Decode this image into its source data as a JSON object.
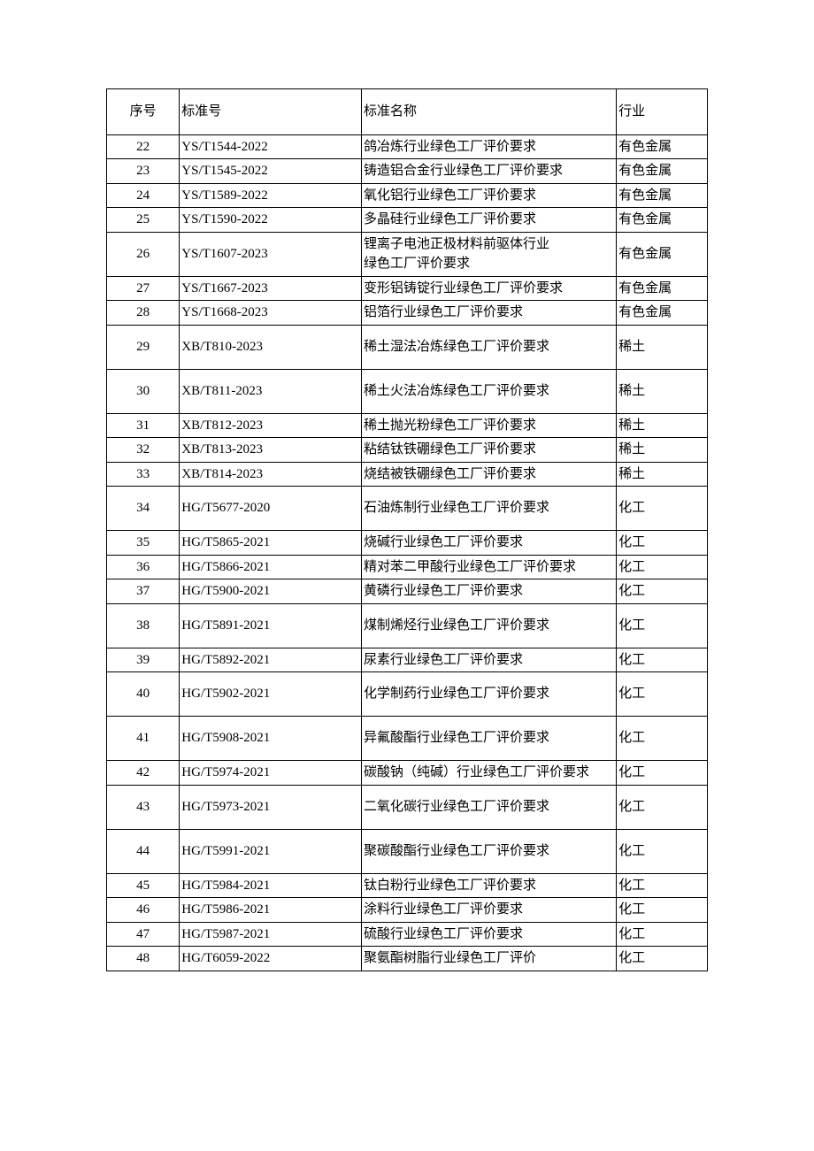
{
  "headers": {
    "seq": "序号",
    "std": "标准号",
    "name": "标准名称",
    "ind": "行业"
  },
  "rows": [
    {
      "seq": "22",
      "std": "YS/T1544-2022",
      "name": "鸽冶炼行业绿色工厂评价要求",
      "ind": "有色金属",
      "tall": false
    },
    {
      "seq": "23",
      "std": "YS/T1545-2022",
      "name": "铸造铝合金行业绿色工厂评价要求",
      "ind": "有色金属",
      "tall": false
    },
    {
      "seq": "24",
      "std": "YS/T1589-2022",
      "name": "氧化铝行业绿色工厂评价要求",
      "ind": "有色金属",
      "tall": false
    },
    {
      "seq": "25",
      "std": "YS/T1590-2022",
      "name": "多晶硅行业绿色工厂评价要求",
      "ind": "有色金属",
      "tall": false
    },
    {
      "seq": "26",
      "std": "YS/T1607-2023",
      "name": "锂离子电池正极材料前驱体行业\n绿色工厂评价要求",
      "ind": "有色金属",
      "tall": false
    },
    {
      "seq": "27",
      "std": "YS/T1667-2023",
      "name": "变形铝铸锭行业绿色工厂评价要求",
      "ind": "有色金属",
      "tall": false
    },
    {
      "seq": "28",
      "std": "YS/T1668-2023",
      "name": "铝箔行业绿色工厂评价要求",
      "ind": "有色金属",
      "tall": false
    },
    {
      "seq": "29",
      "std": "XB/T810-2023",
      "name": "稀土湿法冶炼绿色工厂评价要求",
      "ind": "稀土",
      "tall": true
    },
    {
      "seq": "30",
      "std": "XB/T811-2023",
      "name": "稀土火法冶炼绿色工厂评价要求",
      "ind": "稀土",
      "tall": true
    },
    {
      "seq": "31",
      "std": "XB/T812-2023",
      "name": "稀土抛光粉绿色工厂评价要求",
      "ind": "稀土",
      "tall": false
    },
    {
      "seq": "32",
      "std": "XB/T813-2023",
      "name": "粘结钛铁硼绿色工厂评价要求",
      "ind": "稀土",
      "tall": false
    },
    {
      "seq": "33",
      "std": "XB/T814-2023",
      "name": "烧结被铁硼绿色工厂评价要求",
      "ind": "稀土",
      "tall": false
    },
    {
      "seq": "34",
      "std": "HG/T5677-2020",
      "name": "石油炼制行业绿色工厂评价要求",
      "ind": "化工",
      "tall": true
    },
    {
      "seq": "35",
      "std": "HG/T5865-2021",
      "name": "烧碱行业绿色工厂评价要求",
      "ind": "化工",
      "tall": false
    },
    {
      "seq": "36",
      "std": "HG/T5866-2021",
      "name": "精对苯二甲酸行业绿色工厂评价要求",
      "ind": "化工",
      "tall": false
    },
    {
      "seq": "37",
      "std": "HG/T5900-2021",
      "name": "黄磷行业绿色工厂评价要求",
      "ind": "化工",
      "tall": false
    },
    {
      "seq": "38",
      "std": "HG/T5891-2021",
      "name": "煤制烯烃行业绿色工厂评价要求",
      "ind": "化工",
      "tall": true
    },
    {
      "seq": "39",
      "std": "HG/T5892-2021",
      "name": "尿素行业绿色工厂评价要求",
      "ind": "化工",
      "tall": false
    },
    {
      "seq": "40",
      "std": "HG/T5902-2021",
      "name": "化学制药行业绿色工厂评价要求",
      "ind": "化工",
      "tall": true
    },
    {
      "seq": "41",
      "std": "HG/T5908-2021",
      "name": "异氟酸酯行业绿色工厂评价要求",
      "ind": "化工",
      "tall": true
    },
    {
      "seq": "42",
      "std": "HG/T5974-2021",
      "name": "碳酸钠（纯碱）行业绿色工厂评价要求",
      "ind": "化工",
      "tall": false
    },
    {
      "seq": "43",
      "std": "HG/T5973-2021",
      "name": "二氧化碳行业绿色工厂评价要求",
      "ind": "化工",
      "tall": true
    },
    {
      "seq": "44",
      "std": "HG/T5991-2021",
      "name": "聚碳酸酯行业绿色工厂评价要求",
      "ind": "化工",
      "tall": true
    },
    {
      "seq": "45",
      "std": "HG/T5984-2021",
      "name": "钛白粉行业绿色工厂评价要求",
      "ind": "化工",
      "tall": false
    },
    {
      "seq": "46",
      "std": "HG/T5986-2021",
      "name": "涂料行业绿色工厂评价要求",
      "ind": "化工",
      "tall": false
    },
    {
      "seq": "47",
      "std": "HG/T5987-2021",
      "name": "硫酸行业绿色工厂评价要求",
      "ind": "化工",
      "tall": false
    },
    {
      "seq": "48",
      "std": "HG/T6059-2022",
      "name": "聚氨酯树脂行业绿色工厂评价",
      "ind": "化工",
      "tall": false
    }
  ]
}
